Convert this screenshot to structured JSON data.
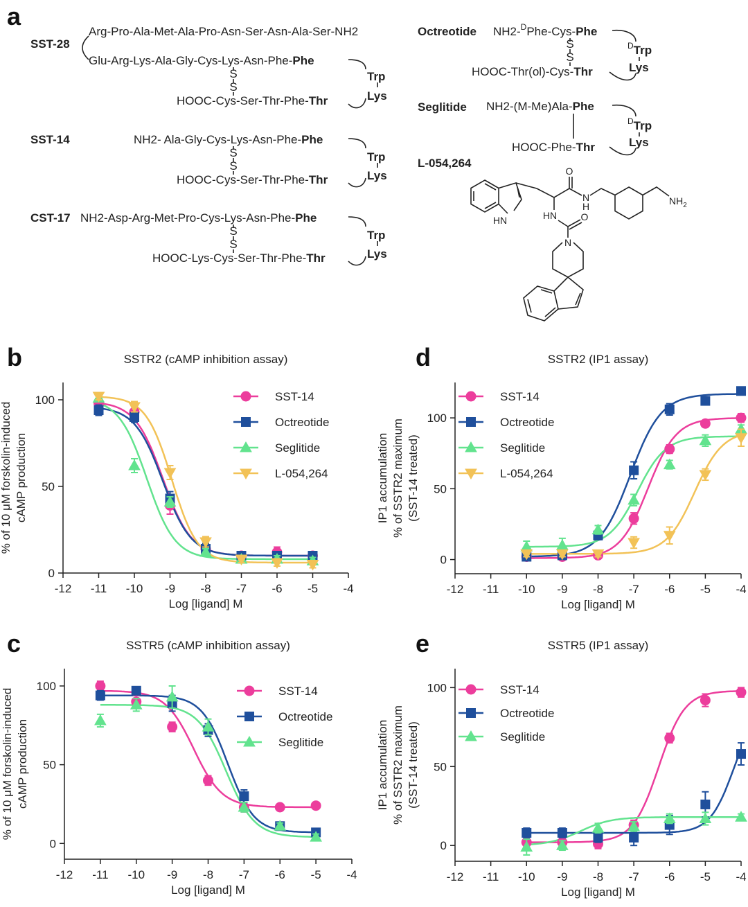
{
  "panel_a": {
    "label": "a",
    "sst28": {
      "name": "SST-28",
      "chain": "Arg-Pro-Ala-Met-Ala-Pro-Asn-Ser-Asn-Ala-Ser-NH2",
      "top": [
        "Glu-Arg-Lys-Ala-Gly-Cys-Lys-Asn-Phe-",
        "Phe"
      ],
      "bottom": [
        "HOOC-Cys-Ser-Thr-Phe-",
        "Thr"
      ],
      "ring": [
        "Trp",
        "Lys"
      ],
      "bridge": [
        "S",
        "S"
      ]
    },
    "sst14": {
      "name": "SST-14",
      "top": [
        "NH2- Ala-Gly-Cys-Lys-Asn-Phe-",
        "Phe"
      ],
      "bottom": [
        "HOOC-Cys-Ser-Thr-Phe-",
        "Thr"
      ],
      "ring": [
        "Trp",
        "Lys"
      ],
      "bridge": [
        "S",
        "S"
      ]
    },
    "cst17": {
      "name": "CST-17",
      "top": [
        "NH2-Asp-Arg-Met-Pro-Cys-Lys-Asn-Phe-",
        "Phe"
      ],
      "bottom": [
        "HOOC-Lys-Cys-Ser-Thr-Phe-",
        "Thr"
      ],
      "ring": [
        "Trp",
        "Lys"
      ],
      "bridge": [
        "S",
        "S"
      ]
    },
    "octreotide": {
      "name": "Octreotide",
      "top": [
        "NH2-",
        "D",
        "Phe-Cys-",
        "Phe"
      ],
      "bottom": [
        "HOOC-Thr(ol)-Cys-",
        "Thr"
      ],
      "ring": [
        "D",
        "Trp",
        "Lys"
      ],
      "bridge": [
        "S",
        "S"
      ]
    },
    "seglitide": {
      "name": "Seglitide",
      "top": [
        "NH2-(M-Me)Ala-",
        "Phe"
      ],
      "bottom": [
        "HOOC-Phe-",
        "Thr"
      ],
      "ring": [
        "D",
        "Trp",
        "Lys"
      ]
    },
    "l054264": {
      "name": "L-054,264",
      "atoms": [
        "O",
        "N",
        "H",
        "HN",
        "O",
        "N",
        "NH",
        "2",
        "HN"
      ]
    }
  },
  "chart_data": [
    {
      "type": "dose_response",
      "panel_label": "b",
      "title": "SSTR2 (cAMP inhibition assay)",
      "xlabel": "Log [ligand] M",
      "ylabel": [
        "% of 10 μM forskolin-induced",
        "cAMP production"
      ],
      "x": [
        -11,
        -10,
        -9,
        -8,
        -7,
        -6,
        -5
      ],
      "xlim": [
        -12,
        -4
      ],
      "xticks": [
        -12,
        -11,
        -10,
        -9,
        -8,
        -7,
        -6,
        -5,
        -4
      ],
      "ylim": [
        0,
        110
      ],
      "yticks": [
        0,
        50,
        100
      ],
      "series": [
        {
          "name": "SST-14",
          "color": "#ec3d9c",
          "marker": "circle",
          "values": [
            98,
            93,
            39,
            14,
            10,
            12,
            10
          ],
          "errors": [
            2,
            3,
            5,
            3,
            2,
            3,
            2
          ],
          "fit": {
            "bottom": 10,
            "top": 99,
            "logEC50": -9.2,
            "hill": -1.1
          }
        },
        {
          "name": "Octreotide",
          "color": "#1f4f9c",
          "marker": "square",
          "values": [
            94,
            90,
            43,
            14,
            10,
            10,
            10
          ],
          "errors": [
            3,
            3,
            4,
            3,
            2,
            2,
            2
          ],
          "fit": {
            "bottom": 10,
            "top": 96,
            "logEC50": -9.2,
            "hill": -1.1
          }
        },
        {
          "name": "Seglitide",
          "color": "#62e38e",
          "marker": "triangle",
          "values": [
            101,
            62,
            41,
            12,
            8,
            8,
            7
          ],
          "errors": [
            2,
            4,
            3,
            2,
            2,
            2,
            2
          ],
          "fit": {
            "bottom": 8,
            "top": 101,
            "logEC50": -9.65,
            "hill": -1.1
          }
        },
        {
          "name": "L-054,264",
          "color": "#f2c257",
          "marker": "triangle-down",
          "values": [
            102,
            96,
            58,
            18,
            8,
            6,
            5
          ],
          "errors": [
            2,
            3,
            4,
            3,
            2,
            2,
            2
          ],
          "fit": {
            "bottom": 6,
            "top": 102,
            "logEC50": -8.95,
            "hill": -1.2
          }
        }
      ]
    },
    {
      "type": "dose_response",
      "panel_label": "c",
      "title": "SSTR5 (cAMP inhibition assay)",
      "xlabel": "Log [ligand] M",
      "ylabel": [
        "% of 10 μM forskolin-induced",
        "cAMP production"
      ],
      "x": [
        -11,
        -10,
        -9,
        -8,
        -7,
        -6,
        -5
      ],
      "xlim": [
        -12,
        -4
      ],
      "xticks": [
        -12,
        -11,
        -10,
        -9,
        -8,
        -7,
        -6,
        -5,
        -4
      ],
      "ylim": [
        -10,
        111
      ],
      "yticks": [
        0,
        50,
        100
      ],
      "series": [
        {
          "name": "SST-14",
          "color": "#ec3d9c",
          "marker": "circle",
          "values": [
            100,
            90,
            74,
            40,
            23,
            23,
            24
          ],
          "errors": [
            3,
            4,
            3,
            3,
            3,
            2,
            2
          ],
          "fit": {
            "bottom": 23,
            "top": 97,
            "logEC50": -8.4,
            "hill": -1.1
          }
        },
        {
          "name": "Octreotide",
          "color": "#1f4f9c",
          "marker": "square",
          "values": [
            94,
            97,
            89,
            72,
            30,
            11,
            7
          ],
          "errors": [
            3,
            2,
            5,
            4,
            4,
            2,
            2
          ],
          "fit": {
            "bottom": 7,
            "top": 94,
            "logEC50": -7.45,
            "hill": -1.2
          }
        },
        {
          "name": "Seglitide",
          "color": "#62e38e",
          "marker": "triangle",
          "values": [
            78,
            88,
            93,
            74,
            23,
            11,
            4
          ],
          "errors": [
            4,
            4,
            7,
            5,
            3,
            2,
            2
          ],
          "fit": {
            "bottom": 4,
            "top": 88,
            "logEC50": -7.5,
            "hill": -1.1
          }
        }
      ]
    },
    {
      "type": "dose_response",
      "panel_label": "d",
      "title": "SSTR2 (IP1 assay)",
      "xlabel": "Log [ligand] M",
      "ylabel": [
        "IP1 accumulation",
        "% of SSTR2 maximum",
        "(SST-14 treated)"
      ],
      "x": [
        -10,
        -9,
        -8,
        -7,
        -6,
        -5,
        -4
      ],
      "xlim": [
        -12,
        -4
      ],
      "xticks": [
        -12,
        -11,
        -10,
        -9,
        -8,
        -7,
        -6,
        -5,
        -4
      ],
      "ylim": [
        -10,
        125
      ],
      "yticks": [
        0,
        50,
        100
      ],
      "series": [
        {
          "name": "SST-14",
          "color": "#ec3d9c",
          "marker": "circle",
          "values": [
            2,
            2,
            3,
            29,
            78,
            96,
            100
          ],
          "errors": [
            2,
            2,
            2,
            4,
            3,
            2,
            3
          ],
          "fit": {
            "bottom": 1,
            "top": 100,
            "logEC50": -6.6,
            "hill": 1.1
          }
        },
        {
          "name": "Octreotide",
          "color": "#1f4f9c",
          "marker": "square",
          "values": [
            2,
            3,
            17,
            63,
            106,
            112,
            119
          ],
          "errors": [
            2,
            2,
            3,
            6,
            4,
            2,
            2
          ],
          "fit": {
            "bottom": 2,
            "top": 117,
            "logEC50": -7.1,
            "hill": 1
          }
        },
        {
          "name": "Seglitide",
          "color": "#62e38e",
          "marker": "triangle",
          "values": [
            9,
            10,
            21,
            42,
            67,
            84,
            92
          ],
          "errors": [
            4,
            5,
            3,
            4,
            3,
            4,
            3
          ],
          "fit": {
            "bottom": 9,
            "top": 87,
            "logEC50": -6.9,
            "hill": 1.1
          }
        },
        {
          "name": "L-054,264",
          "color": "#f2c257",
          "marker": "triangle-down",
          "values": [
            4,
            4,
            4,
            12,
            17,
            60,
            86
          ],
          "errors": [
            2,
            2,
            2,
            4,
            6,
            4,
            6
          ],
          "fit": {
            "bottom": 4,
            "top": 91,
            "logEC50": -5.3,
            "hill": 1.1
          }
        }
      ]
    },
    {
      "type": "dose_response",
      "panel_label": "e",
      "title": "SSTR5 (IP1 assay)",
      "xlabel": "Log [ligand] M",
      "ylabel": [
        "IP1 accumulation",
        "% of SSTR2 maximum",
        "(SST-14 treated)"
      ],
      "x": [
        -10,
        -9,
        -8,
        -7,
        -6,
        -5,
        -4
      ],
      "xlim": [
        -12,
        -4
      ],
      "xticks": [
        -12,
        -11,
        -10,
        -9,
        -8,
        -7,
        -6,
        -5,
        -4
      ],
      "ylim": [
        -10,
        112
      ],
      "yticks": [
        0,
        50,
        100
      ],
      "series": [
        {
          "name": "SST-14",
          "color": "#ec3d9c",
          "marker": "circle",
          "values": [
            2,
            2,
            1,
            13,
            68,
            92,
            97
          ],
          "errors": [
            3,
            3,
            3,
            3,
            3,
            4,
            3
          ],
          "fit": {
            "bottom": 2,
            "top": 98,
            "logEC50": -6.3,
            "hill": 1.2
          }
        },
        {
          "name": "Octreotide",
          "color": "#1f4f9c",
          "marker": "square",
          "values": [
            8,
            8,
            5,
            5,
            13,
            26,
            58
          ],
          "errors": [
            3,
            3,
            3,
            5,
            6,
            8,
            7
          ],
          "fit": {
            "bottom": 8,
            "top": 90,
            "logEC50": -4.2,
            "hill": 1.3
          }
        },
        {
          "name": "Seglitide",
          "color": "#62e38e",
          "marker": "triangle",
          "values": [
            -1,
            0,
            11,
            12,
            17,
            17,
            18
          ],
          "errors": [
            5,
            3,
            3,
            3,
            3,
            4,
            2
          ],
          "fit": {
            "bottom": 0,
            "top": 18,
            "logEC50": -8.5,
            "hill": 1
          }
        }
      ]
    }
  ]
}
